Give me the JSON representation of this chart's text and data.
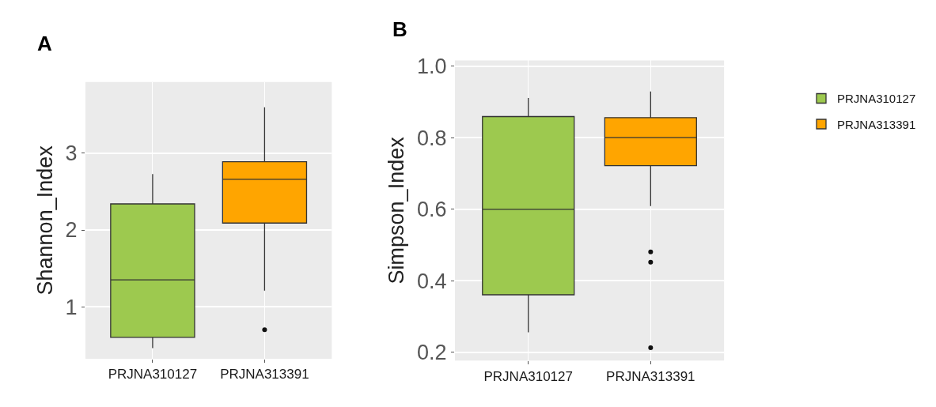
{
  "chart_data": [
    {
      "type": "box",
      "title": "A",
      "ylabel": "Shannon_Index",
      "categories": [
        "PRJNA310127",
        "PRJNA313391"
      ],
      "ylim": [
        0.32,
        3.93
      ],
      "yticks": [
        1,
        2,
        3
      ],
      "grid": true,
      "legend": "right",
      "series": [
        {
          "name": "PRJNA310127",
          "color": "#9dc94f",
          "boxes": [
            {
              "low": 0.46,
              "q1": 0.6,
              "median": 1.35,
              "q3": 2.34,
              "high": 2.73
            },
            null
          ]
        },
        {
          "name": "PRJNA313391",
          "color": "#ffa500",
          "boxes": [
            null,
            {
              "low": 1.21,
              "q1": 2.09,
              "median": 2.66,
              "q3": 2.89,
              "high": 3.6,
              "outliers": [
                0.7
              ]
            }
          ]
        }
      ]
    },
    {
      "type": "box",
      "title": "B",
      "ylabel": "Simpson_Index",
      "categories": [
        "PRJNA310127",
        "PRJNA313391"
      ],
      "ylim": [
        0.177,
        1.016
      ],
      "yticks": [
        0.2,
        0.4,
        0.6,
        0.8,
        {
          "value": 1,
          "label": "1.0"
        }
      ],
      "grid": true,
      "series": [
        {
          "color": "#9dc94f",
          "boxes": [
            {
              "low": 0.256,
              "q1": 0.361,
              "median": 0.6,
              "q3": 0.859,
              "high": 0.911
            },
            null
          ]
        },
        {
          "color": "#ffa500",
          "boxes": [
            null,
            {
              "low": 0.609,
              "q1": 0.722,
              "median": 0.8,
              "q3": 0.856,
              "high": 0.929,
              "outliers": [
                0.481,
                0.452,
                0.213
              ]
            }
          ]
        }
      ]
    }
  ]
}
